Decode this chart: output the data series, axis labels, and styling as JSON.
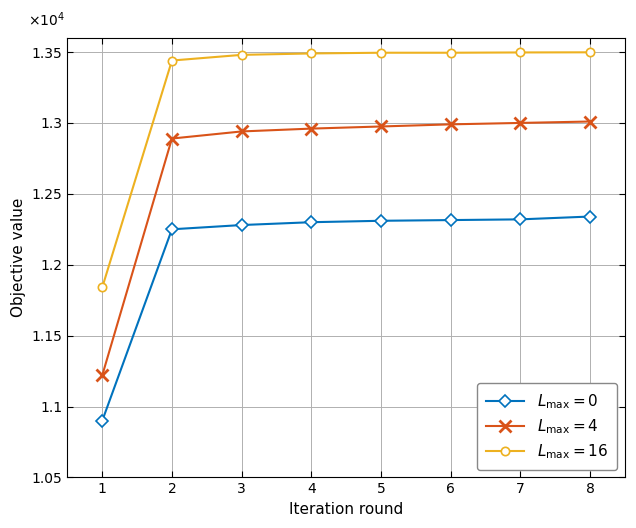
{
  "iterations": [
    1,
    2,
    3,
    4,
    5,
    6,
    7,
    8
  ],
  "series": [
    {
      "label": "$L_{\\rm max} = 0$",
      "values": [
        10900,
        12250,
        12280,
        12300,
        12310,
        12315,
        12320,
        12340
      ],
      "color": "#0072BD",
      "marker": "D",
      "marker_size": 6,
      "marker_facecolor": "white",
      "linewidth": 1.5
    },
    {
      "label": "$L_{\\rm max} = 4$",
      "values": [
        11220,
        12890,
        12940,
        12960,
        12975,
        12990,
        13000,
        13010
      ],
      "color": "#D95319",
      "marker": "x",
      "marker_size": 8,
      "marker_facecolor": "#D95319",
      "linewidth": 1.5
    },
    {
      "label": "$L_{\\rm max} = 16$",
      "values": [
        11840,
        13440,
        13480,
        13490,
        13495,
        13495,
        13497,
        13498
      ],
      "color": "#EDB120",
      "marker": "o",
      "marker_size": 6,
      "marker_facecolor": "white",
      "linewidth": 1.5
    }
  ],
  "xlabel": "Iteration round",
  "ylabel": "Objective value",
  "xlim": [
    0.5,
    8.5
  ],
  "ylim": [
    10500,
    13600
  ],
  "yticks": [
    10500,
    11000,
    11500,
    12000,
    12500,
    13000,
    13500
  ],
  "ytick_labels": [
    "1.05",
    "1.1",
    "1.15",
    "1.2",
    "1.25",
    "1.3",
    "1.35"
  ],
  "scale_label": "$\\times10^4$",
  "background_color": "#ffffff",
  "grid_color": "#b0b0b0",
  "legend_loc": "lower right",
  "axis_fontsize": 11,
  "tick_fontsize": 10,
  "legend_fontsize": 11
}
